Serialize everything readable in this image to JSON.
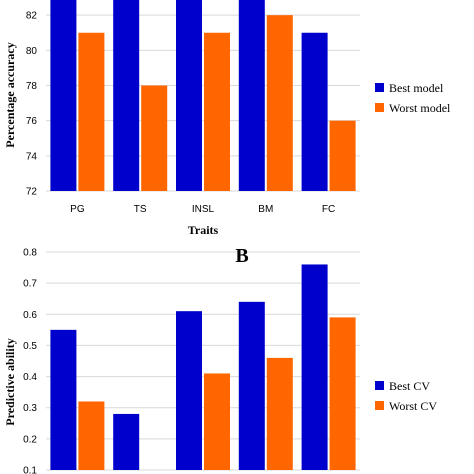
{
  "chart_data": [
    {
      "type": "bar",
      "panel_label": "",
      "categories": [
        "PG",
        "TS",
        "INSL",
        "BM",
        "FC"
      ],
      "series": [
        {
          "name": "Best model",
          "values": [
            84,
            84,
            84,
            84,
            81
          ],
          "color": "#0000cc"
        },
        {
          "name": "Worst model",
          "values": [
            81,
            78,
            81,
            82,
            76
          ],
          "color": "#ff6600"
        }
      ],
      "xlabel": "Traits",
      "ylabel": "Percentage accuracy",
      "ylim": [
        72,
        84
      ],
      "yticks": [
        "72",
        "74",
        "76",
        "78",
        "80",
        "82"
      ],
      "grid": true,
      "legend_position": "right"
    },
    {
      "type": "bar",
      "panel_label": "B",
      "categories": [
        "",
        "",
        "",
        "",
        ""
      ],
      "series": [
        {
          "name": "Best CV",
          "values": [
            0.55,
            0.28,
            0.61,
            0.64,
            0.76
          ],
          "color": "#0000cc"
        },
        {
          "name": "Worst CV",
          "values": [
            0.32,
            0.08,
            0.41,
            0.46,
            0.59
          ],
          "color": "#ff6600"
        }
      ],
      "xlabel": "",
      "ylabel": "Predictive ability",
      "ylim": [
        0.1,
        0.8
      ],
      "yticks": [
        "0.1",
        "0.2",
        "0.3",
        "0.4",
        "0.5",
        "0.6",
        "0.7",
        "0.8"
      ],
      "grid": true,
      "legend_position": "right"
    }
  ]
}
